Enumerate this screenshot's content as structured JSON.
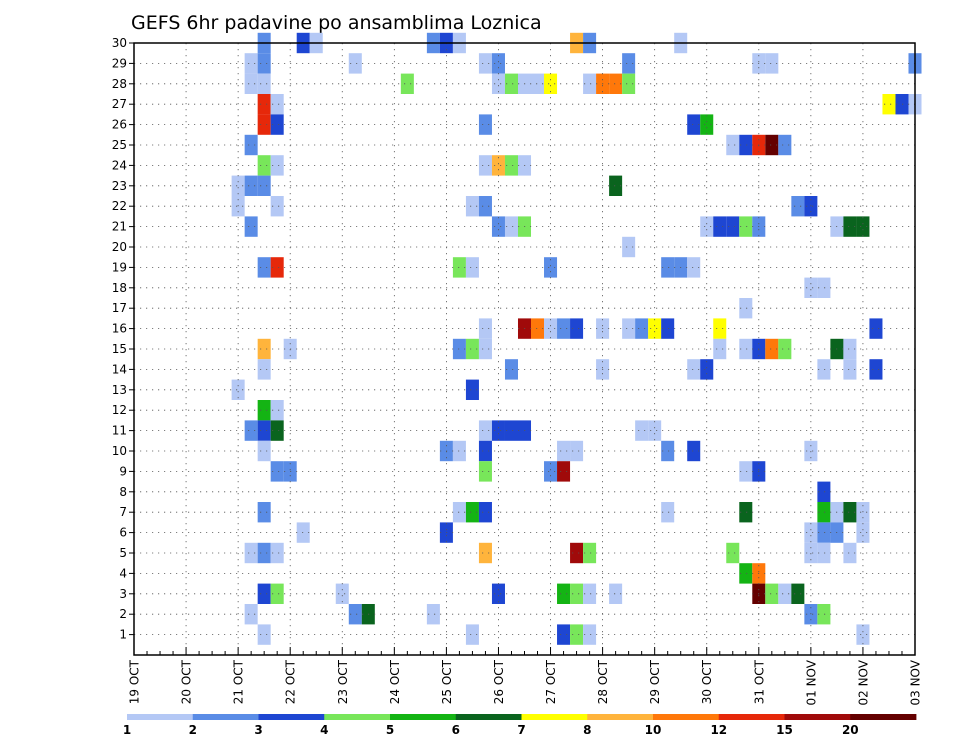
{
  "chart_data": {
    "type": "heatmap",
    "title": "GEFS 6hr padavine po ansamblima Loznica",
    "xlabel": "",
    "ylabel": "",
    "x_ticks": [
      "19 OCT",
      "20 OCT",
      "21 OCT",
      "22 OCT",
      "23 OCT",
      "24 OCT",
      "25 OCT",
      "26 OCT",
      "27 OCT",
      "28 OCT",
      "29 OCT",
      "30 OCT",
      "31 OCT",
      "01 NOV",
      "02 NOV",
      "03 NOV"
    ],
    "y_ticks": [
      "1",
      "2",
      "3",
      "4",
      "5",
      "6",
      "7",
      "8",
      "9",
      "10",
      "11",
      "12",
      "13",
      "14",
      "15",
      "16",
      "17",
      "18",
      "19",
      "20",
      "21",
      "22",
      "23",
      "24",
      "25",
      "26",
      "27",
      "28",
      "29",
      "30"
    ],
    "x_range_steps": [
      0,
      60
    ],
    "y_range": [
      0,
      30
    ],
    "grid": true,
    "colorbar": {
      "levels": [
        "1",
        "2",
        "3",
        "4",
        "5",
        "6",
        "7",
        "8",
        "10",
        "12",
        "15",
        "20"
      ],
      "colors": [
        "#b4c8f5",
        "#5a8ce6",
        "#1e46d2",
        "#78e65a",
        "#14b414",
        "#0a641e",
        "#ffff00",
        "#ffb43c",
        "#ff780a",
        "#e6280a",
        "#a00a0a",
        "#640000"
      ]
    },
    "cells": [
      {
        "m": 30,
        "t": 10,
        "c": 1
      },
      {
        "m": 30,
        "t": 13,
        "c": 2
      },
      {
        "m": 30,
        "t": 14,
        "c": 0
      },
      {
        "m": 30,
        "t": 23,
        "c": 1
      },
      {
        "m": 30,
        "t": 24,
        "c": 2
      },
      {
        "m": 30,
        "t": 25,
        "c": 0
      },
      {
        "m": 30,
        "t": 34,
        "c": 7
      },
      {
        "m": 30,
        "t": 35,
        "c": 1
      },
      {
        "m": 30,
        "t": 42,
        "c": 0
      },
      {
        "m": 29,
        "t": 9,
        "c": 0
      },
      {
        "m": 29,
        "t": 10,
        "c": 1
      },
      {
        "m": 29,
        "t": 17,
        "c": 0
      },
      {
        "m": 29,
        "t": 27,
        "c": 0
      },
      {
        "m": 29,
        "t": 28,
        "c": 1
      },
      {
        "m": 29,
        "t": 38,
        "c": 1
      },
      {
        "m": 29,
        "t": 48,
        "c": 0
      },
      {
        "m": 29,
        "t": 49,
        "c": 0
      },
      {
        "m": 29,
        "t": 60,
        "c": 1
      },
      {
        "m": 28,
        "t": 9,
        "c": 0
      },
      {
        "m": 28,
        "t": 10,
        "c": 0
      },
      {
        "m": 28,
        "t": 21,
        "c": 3
      },
      {
        "m": 28,
        "t": 28,
        "c": 0
      },
      {
        "m": 28,
        "t": 29,
        "c": 3
      },
      {
        "m": 28,
        "t": 30,
        "c": 0
      },
      {
        "m": 28,
        "t": 31,
        "c": 0
      },
      {
        "m": 28,
        "t": 32,
        "c": 6
      },
      {
        "m": 28,
        "t": 35,
        "c": 0
      },
      {
        "m": 28,
        "t": 36,
        "c": 8
      },
      {
        "m": 28,
        "t": 37,
        "c": 8
      },
      {
        "m": 28,
        "t": 38,
        "c": 3
      },
      {
        "m": 27,
        "t": 10,
        "c": 9
      },
      {
        "m": 27,
        "t": 11,
        "c": 0
      },
      {
        "m": 27,
        "t": 58,
        "c": 6
      },
      {
        "m": 27,
        "t": 59,
        "c": 2
      },
      {
        "m": 27,
        "t": 60,
        "c": 0
      },
      {
        "m": 26,
        "t": 10,
        "c": 9
      },
      {
        "m": 26,
        "t": 11,
        "c": 2
      },
      {
        "m": 26,
        "t": 27,
        "c": 1
      },
      {
        "m": 26,
        "t": 43,
        "c": 2
      },
      {
        "m": 26,
        "t": 44,
        "c": 4
      },
      {
        "m": 25,
        "t": 9,
        "c": 1
      },
      {
        "m": 25,
        "t": 46,
        "c": 0
      },
      {
        "m": 25,
        "t": 47,
        "c": 2
      },
      {
        "m": 25,
        "t": 48,
        "c": 9
      },
      {
        "m": 25,
        "t": 49,
        "c": 11
      },
      {
        "m": 25,
        "t": 50,
        "c": 1
      },
      {
        "m": 24,
        "t": 10,
        "c": 3
      },
      {
        "m": 24,
        "t": 11,
        "c": 0
      },
      {
        "m": 24,
        "t": 27,
        "c": 0
      },
      {
        "m": 24,
        "t": 28,
        "c": 7
      },
      {
        "m": 24,
        "t": 29,
        "c": 3
      },
      {
        "m": 24,
        "t": 30,
        "c": 0
      },
      {
        "m": 23,
        "t": 8,
        "c": 0
      },
      {
        "m": 23,
        "t": 9,
        "c": 1
      },
      {
        "m": 23,
        "t": 10,
        "c": 1
      },
      {
        "m": 23,
        "t": 37,
        "c": 5
      },
      {
        "m": 22,
        "t": 8,
        "c": 0
      },
      {
        "m": 22,
        "t": 11,
        "c": 0
      },
      {
        "m": 22,
        "t": 26,
        "c": 0
      },
      {
        "m": 22,
        "t": 27,
        "c": 1
      },
      {
        "m": 22,
        "t": 51,
        "c": 1
      },
      {
        "m": 22,
        "t": 52,
        "c": 2
      },
      {
        "m": 21,
        "t": 9,
        "c": 1
      },
      {
        "m": 21,
        "t": 28,
        "c": 1
      },
      {
        "m": 21,
        "t": 29,
        "c": 0
      },
      {
        "m": 21,
        "t": 30,
        "c": 3
      },
      {
        "m": 21,
        "t": 44,
        "c": 0
      },
      {
        "m": 21,
        "t": 45,
        "c": 2
      },
      {
        "m": 21,
        "t": 46,
        "c": 2
      },
      {
        "m": 21,
        "t": 47,
        "c": 3
      },
      {
        "m": 21,
        "t": 48,
        "c": 1
      },
      {
        "m": 21,
        "t": 54,
        "c": 0
      },
      {
        "m": 21,
        "t": 55,
        "c": 5
      },
      {
        "m": 21,
        "t": 56,
        "c": 5
      },
      {
        "m": 20,
        "t": 38,
        "c": 0
      },
      {
        "m": 19,
        "t": 10,
        "c": 1
      },
      {
        "m": 19,
        "t": 11,
        "c": 9
      },
      {
        "m": 19,
        "t": 25,
        "c": 3
      },
      {
        "m": 19,
        "t": 26,
        "c": 0
      },
      {
        "m": 19,
        "t": 32,
        "c": 1
      },
      {
        "m": 19,
        "t": 41,
        "c": 1
      },
      {
        "m": 19,
        "t": 42,
        "c": 1
      },
      {
        "m": 19,
        "t": 43,
        "c": 0
      },
      {
        "m": 18,
        "t": 52,
        "c": 0
      },
      {
        "m": 18,
        "t": 53,
        "c": 0
      },
      {
        "m": 17,
        "t": 47,
        "c": 0
      },
      {
        "m": 16,
        "t": 27,
        "c": 0
      },
      {
        "m": 16,
        "t": 30,
        "c": 10
      },
      {
        "m": 16,
        "t": 31,
        "c": 8
      },
      {
        "m": 16,
        "t": 32,
        "c": 0
      },
      {
        "m": 16,
        "t": 33,
        "c": 1
      },
      {
        "m": 16,
        "t": 34,
        "c": 2
      },
      {
        "m": 16,
        "t": 36,
        "c": 0
      },
      {
        "m": 16,
        "t": 38,
        "c": 0
      },
      {
        "m": 16,
        "t": 39,
        "c": 1
      },
      {
        "m": 16,
        "t": 40,
        "c": 6
      },
      {
        "m": 16,
        "t": 41,
        "c": 2
      },
      {
        "m": 16,
        "t": 45,
        "c": 6
      },
      {
        "m": 16,
        "t": 57,
        "c": 2
      },
      {
        "m": 15,
        "t": 10,
        "c": 7
      },
      {
        "m": 15,
        "t": 12,
        "c": 0
      },
      {
        "m": 15,
        "t": 25,
        "c": 1
      },
      {
        "m": 15,
        "t": 26,
        "c": 3
      },
      {
        "m": 15,
        "t": 27,
        "c": 0
      },
      {
        "m": 15,
        "t": 45,
        "c": 0
      },
      {
        "m": 15,
        "t": 47,
        "c": 0
      },
      {
        "m": 15,
        "t": 48,
        "c": 2
      },
      {
        "m": 15,
        "t": 49,
        "c": 8
      },
      {
        "m": 15,
        "t": 50,
        "c": 3
      },
      {
        "m": 15,
        "t": 54,
        "c": 5
      },
      {
        "m": 15,
        "t": 55,
        "c": 0
      },
      {
        "m": 14,
        "t": 10,
        "c": 0
      },
      {
        "m": 14,
        "t": 29,
        "c": 1
      },
      {
        "m": 14,
        "t": 36,
        "c": 0
      },
      {
        "m": 14,
        "t": 43,
        "c": 0
      },
      {
        "m": 14,
        "t": 44,
        "c": 2
      },
      {
        "m": 14,
        "t": 53,
        "c": 0
      },
      {
        "m": 14,
        "t": 55,
        "c": 0
      },
      {
        "m": 14,
        "t": 57,
        "c": 2
      },
      {
        "m": 13,
        "t": 26,
        "c": 2
      },
      {
        "m": 13,
        "t": 8,
        "c": 0
      },
      {
        "m": 12,
        "t": 10,
        "c": 4
      },
      {
        "m": 12,
        "t": 11,
        "c": 0
      },
      {
        "m": 11,
        "t": 9,
        "c": 1
      },
      {
        "m": 11,
        "t": 10,
        "c": 2
      },
      {
        "m": 11,
        "t": 11,
        "c": 5
      },
      {
        "m": 11,
        "t": 27,
        "c": 0
      },
      {
        "m": 11,
        "t": 28,
        "c": 2
      },
      {
        "m": 11,
        "t": 29,
        "c": 2
      },
      {
        "m": 11,
        "t": 30,
        "c": 2
      },
      {
        "m": 11,
        "t": 39,
        "c": 0
      },
      {
        "m": 11,
        "t": 40,
        "c": 0
      },
      {
        "m": 10,
        "t": 10,
        "c": 0
      },
      {
        "m": 10,
        "t": 24,
        "c": 1
      },
      {
        "m": 10,
        "t": 25,
        "c": 0
      },
      {
        "m": 10,
        "t": 27,
        "c": 2
      },
      {
        "m": 10,
        "t": 33,
        "c": 0
      },
      {
        "m": 10,
        "t": 34,
        "c": 0
      },
      {
        "m": 10,
        "t": 41,
        "c": 1
      },
      {
        "m": 10,
        "t": 43,
        "c": 2
      },
      {
        "m": 10,
        "t": 52,
        "c": 0
      },
      {
        "m": 9,
        "t": 11,
        "c": 1
      },
      {
        "m": 9,
        "t": 12,
        "c": 1
      },
      {
        "m": 9,
        "t": 27,
        "c": 3
      },
      {
        "m": 9,
        "t": 32,
        "c": 1
      },
      {
        "m": 9,
        "t": 33,
        "c": 10
      },
      {
        "m": 9,
        "t": 47,
        "c": 0
      },
      {
        "m": 9,
        "t": 48,
        "c": 2
      },
      {
        "m": 8,
        "t": 53,
        "c": 2
      },
      {
        "m": 7,
        "t": 10,
        "c": 1
      },
      {
        "m": 7,
        "t": 25,
        "c": 0
      },
      {
        "m": 7,
        "t": 26,
        "c": 4
      },
      {
        "m": 7,
        "t": 27,
        "c": 2
      },
      {
        "m": 7,
        "t": 41,
        "c": 0
      },
      {
        "m": 7,
        "t": 47,
        "c": 5
      },
      {
        "m": 7,
        "t": 53,
        "c": 4
      },
      {
        "m": 7,
        "t": 54,
        "c": 0
      },
      {
        "m": 7,
        "t": 55,
        "c": 5
      },
      {
        "m": 7,
        "t": 56,
        "c": 0
      },
      {
        "m": 6,
        "t": 13,
        "c": 0
      },
      {
        "m": 6,
        "t": 24,
        "c": 2
      },
      {
        "m": 6,
        "t": 52,
        "c": 0
      },
      {
        "m": 6,
        "t": 53,
        "c": 1
      },
      {
        "m": 6,
        "t": 54,
        "c": 1
      },
      {
        "m": 6,
        "t": 56,
        "c": 0
      },
      {
        "m": 5,
        "t": 9,
        "c": 0
      },
      {
        "m": 5,
        "t": 10,
        "c": 1
      },
      {
        "m": 5,
        "t": 11,
        "c": 0
      },
      {
        "m": 5,
        "t": 27,
        "c": 7
      },
      {
        "m": 5,
        "t": 34,
        "c": 10
      },
      {
        "m": 5,
        "t": 35,
        "c": 3
      },
      {
        "m": 5,
        "t": 46,
        "c": 3
      },
      {
        "m": 5,
        "t": 52,
        "c": 0
      },
      {
        "m": 5,
        "t": 53,
        "c": 0
      },
      {
        "m": 5,
        "t": 55,
        "c": 0
      },
      {
        "m": 4,
        "t": 47,
        "c": 4
      },
      {
        "m": 4,
        "t": 48,
        "c": 8
      },
      {
        "m": 3,
        "t": 10,
        "c": 2
      },
      {
        "m": 3,
        "t": 11,
        "c": 3
      },
      {
        "m": 3,
        "t": 16,
        "c": 0
      },
      {
        "m": 3,
        "t": 28,
        "c": 2
      },
      {
        "m": 3,
        "t": 33,
        "c": 4
      },
      {
        "m": 3,
        "t": 34,
        "c": 3
      },
      {
        "m": 3,
        "t": 35,
        "c": 0
      },
      {
        "m": 3,
        "t": 37,
        "c": 0
      },
      {
        "m": 3,
        "t": 48,
        "c": 11
      },
      {
        "m": 3,
        "t": 49,
        "c": 3
      },
      {
        "m": 3,
        "t": 50,
        "c": 0
      },
      {
        "m": 3,
        "t": 51,
        "c": 5
      },
      {
        "m": 2,
        "t": 9,
        "c": 0
      },
      {
        "m": 2,
        "t": 17,
        "c": 1
      },
      {
        "m": 2,
        "t": 18,
        "c": 5
      },
      {
        "m": 2,
        "t": 23,
        "c": 0
      },
      {
        "m": 2,
        "t": 52,
        "c": 1
      },
      {
        "m": 2,
        "t": 53,
        "c": 3
      },
      {
        "m": 1,
        "t": 10,
        "c": 0
      },
      {
        "m": 1,
        "t": 26,
        "c": 0
      },
      {
        "m": 1,
        "t": 33,
        "c": 2
      },
      {
        "m": 1,
        "t": 34,
        "c": 3
      },
      {
        "m": 1,
        "t": 35,
        "c": 0
      },
      {
        "m": 1,
        "t": 56,
        "c": 0
      }
    ]
  }
}
